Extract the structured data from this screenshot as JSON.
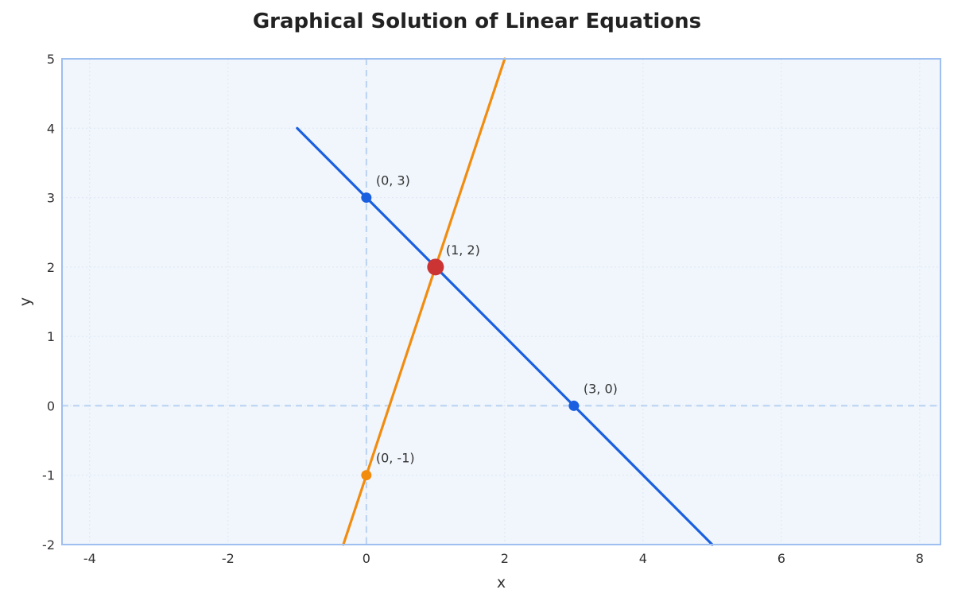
{
  "chart_data": {
    "type": "line",
    "title": "Graphical Solution of Linear Equations",
    "xlabel": "x",
    "ylabel": "y",
    "xlim": [
      -4.4,
      8.3
    ],
    "ylim": [
      -2,
      5
    ],
    "x_ticks": [
      -4,
      -2,
      0,
      2,
      4,
      6,
      8
    ],
    "y_ticks": [
      -2,
      -1,
      0,
      1,
      2,
      3,
      4,
      5
    ],
    "grid": true,
    "series": [
      {
        "color": "#1a5fe0",
        "x": [
          -1,
          5
        ],
        "y": [
          4,
          -2
        ]
      },
      {
        "color": "#f28c0f",
        "x": [
          -0.333,
          2
        ],
        "y": [
          -2,
          5
        ]
      }
    ],
    "points": [
      {
        "x": 0,
        "y": 3,
        "label": "(0, 3)",
        "color": "#1a5fe0"
      },
      {
        "x": 3,
        "y": 0,
        "label": "(3, 0)",
        "color": "#1a5fe0"
      },
      {
        "x": 0,
        "y": -1,
        "label": "(0, -1)",
        "color": "#f28c0f"
      },
      {
        "x": 1,
        "y": 2,
        "label": "(1, 2)",
        "color": "#cc3333"
      }
    ],
    "colors": {
      "plot_background": "#f0f6fc",
      "plot_border": "#9ebff0",
      "zero_lines": "#b8d2f2",
      "grid": "#dde6f2"
    }
  }
}
